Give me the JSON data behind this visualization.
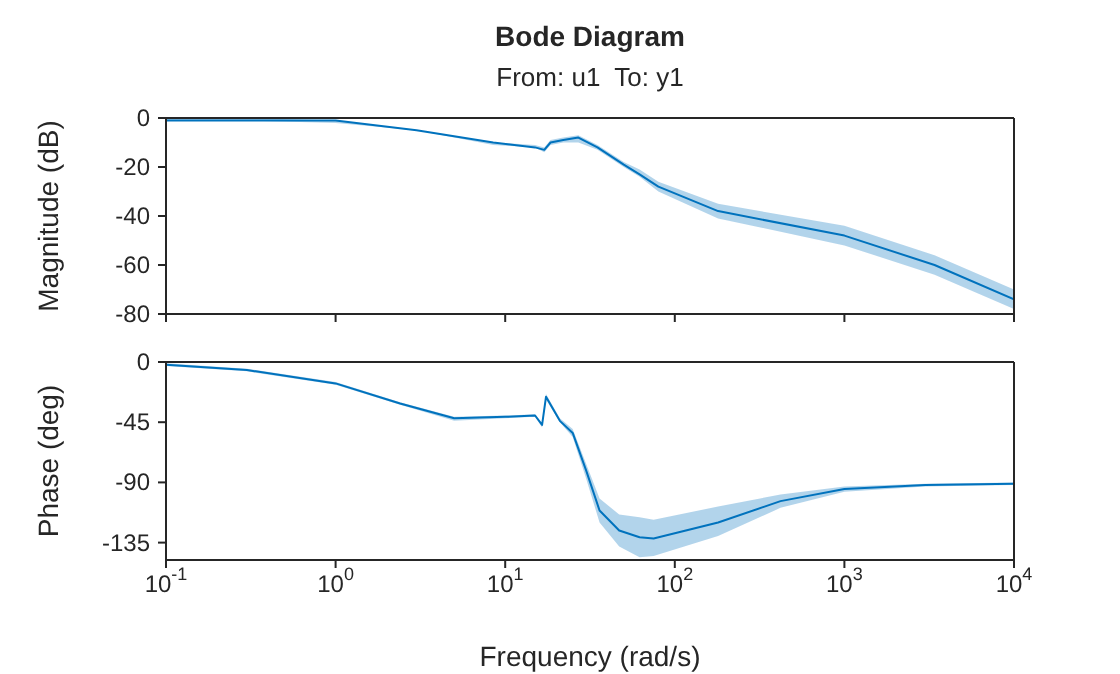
{
  "chart_data": [
    {
      "type": "line",
      "title": "Bode Diagram",
      "subtitle": "From: u1  To: y1",
      "ylabel": "Magnitude (dB)",
      "log": "x",
      "grid": false,
      "tick_labels": "y",
      "xlim": [
        0.1,
        10000
      ],
      "xticks": [
        {
          "value": 0.1,
          "label": null
        },
        {
          "value": 1,
          "label": null
        },
        {
          "value": 10,
          "label": null
        },
        {
          "value": 100,
          "label": null
        },
        {
          "value": 1000,
          "label": null
        },
        {
          "value": 10000,
          "label": null
        }
      ],
      "ylim": [
        -80,
        0
      ],
      "yticks": [
        -80,
        -60,
        -40,
        -20,
        0
      ],
      "series": [
        {
          "color": "#0072bd",
          "x": [
            0.1,
            0.3,
            1,
            3,
            8.5,
            15,
            17,
            18.5,
            22,
            27,
            35,
            50,
            62,
            80,
            180,
            1000,
            3400,
            10000
          ],
          "values": [
            -1,
            -1,
            -1,
            -5,
            -10,
            -12,
            -13,
            -10,
            -9,
            -8,
            -12,
            -19,
            -23,
            -28,
            -38,
            -48,
            -60,
            -74
          ],
          "lower": [
            -1,
            -1,
            -2,
            -5,
            -11,
            -12,
            -14,
            -11,
            -10,
            -10,
            -13,
            -20,
            -24,
            -30,
            -41,
            -52,
            -64,
            -78
          ],
          "upper": [
            0,
            0,
            -1,
            -5,
            -10,
            -11,
            -12,
            -9,
            -8,
            -7,
            -11,
            -18,
            -21,
            -26,
            -35,
            -44,
            -56,
            -70
          ]
        }
      ]
    },
    {
      "type": "line",
      "xlabel": "Frequency (rad/s)",
      "ylabel": "Phase (deg)",
      "log": "x",
      "grid": false,
      "xlim": [
        0.1,
        10000
      ],
      "xticks": [
        {
          "value": 0.1,
          "label": "10$^{-1}$"
        },
        {
          "value": 1,
          "label": "10$^{0}$"
        },
        {
          "value": 10,
          "label": "10$^{1}$"
        },
        {
          "value": 100,
          "label": "10$^{2}$"
        },
        {
          "value": 1000,
          "label": "10$^{3}$"
        },
        {
          "value": 10000,
          "label": "10$^{4}$"
        }
      ],
      "ylim": [
        -148,
        0
      ],
      "yticks": [
        -135,
        -90,
        -45,
        0
      ],
      "series": [
        {
          "color": "#0072bd",
          "x": [
            0.1,
            0.3,
            1,
            2.4,
            5,
            10,
            15,
            16.5,
            17.4,
            21,
            25,
            30,
            36,
            47,
            62,
            75,
            180,
            420,
            1000,
            3000,
            10000
          ],
          "values": [
            -2,
            -6,
            -16,
            -31,
            -42,
            -41,
            -40,
            -47,
            -26,
            -44,
            -53,
            -81,
            -111,
            -126,
            -131,
            -132,
            -120,
            -104,
            -95,
            -92,
            -91
          ],
          "lower": [
            -3,
            -7,
            -17,
            -32,
            -44,
            -42,
            -41,
            -49,
            -28,
            -45,
            -56,
            -87,
            -120,
            -138,
            -146,
            -145,
            -130,
            -109,
            -97,
            -93,
            -92
          ],
          "upper": [
            -1,
            -5,
            -15,
            -30,
            -41,
            -40,
            -39,
            -46,
            -24,
            -42,
            -50,
            -76,
            -102,
            -114,
            -116,
            -118,
            -108,
            -99,
            -93,
            -91,
            -90
          ]
        }
      ]
    }
  ]
}
